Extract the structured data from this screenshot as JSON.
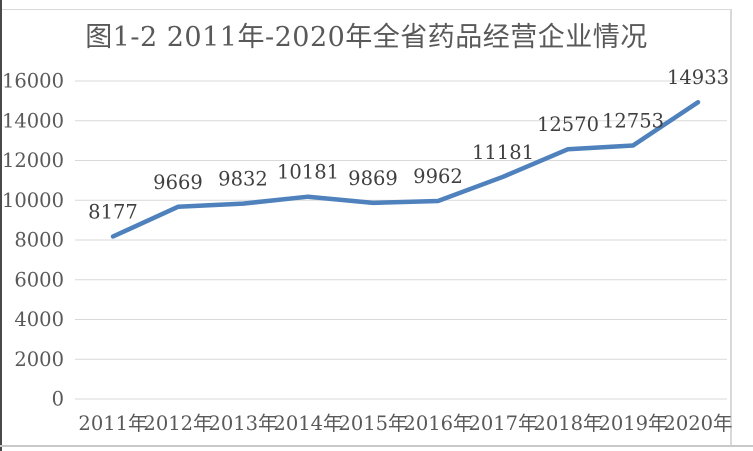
{
  "chart_data": {
    "type": "line",
    "title": "图1-2 2011年-2020年全省药品经营企业情况",
    "categories": [
      "2011年",
      "2012年",
      "2013年",
      "2014年",
      "2015年",
      "2016年",
      "2017年",
      "2018年",
      "2019年",
      "2020年"
    ],
    "values": [
      8177,
      9669,
      9832,
      10181,
      9869,
      9962,
      11181,
      12570,
      12753,
      14933
    ],
    "data_labels": [
      "8177",
      "9669",
      "9832",
      "10181",
      "9869",
      "9962",
      "11181",
      "12570",
      "12753",
      "14933"
    ],
    "xlabel": "",
    "ylabel": "",
    "ylim": [
      0,
      16000
    ],
    "ytick_interval": 2000,
    "yticks": [
      0,
      2000,
      4000,
      6000,
      8000,
      10000,
      12000,
      14000,
      16000
    ],
    "grid": true,
    "legend_position": "none",
    "colors": {
      "line": "#4F81BD",
      "title_text": "#595959",
      "tick_text": "#595959",
      "data_label_text": "#404040",
      "gridline": "#D9D9D9",
      "frame_dark": "#4A4A4A",
      "frame_light": "#D9D9D9",
      "frame_bottom": "#C9C9C9",
      "background": "#FFFFFF"
    }
  }
}
